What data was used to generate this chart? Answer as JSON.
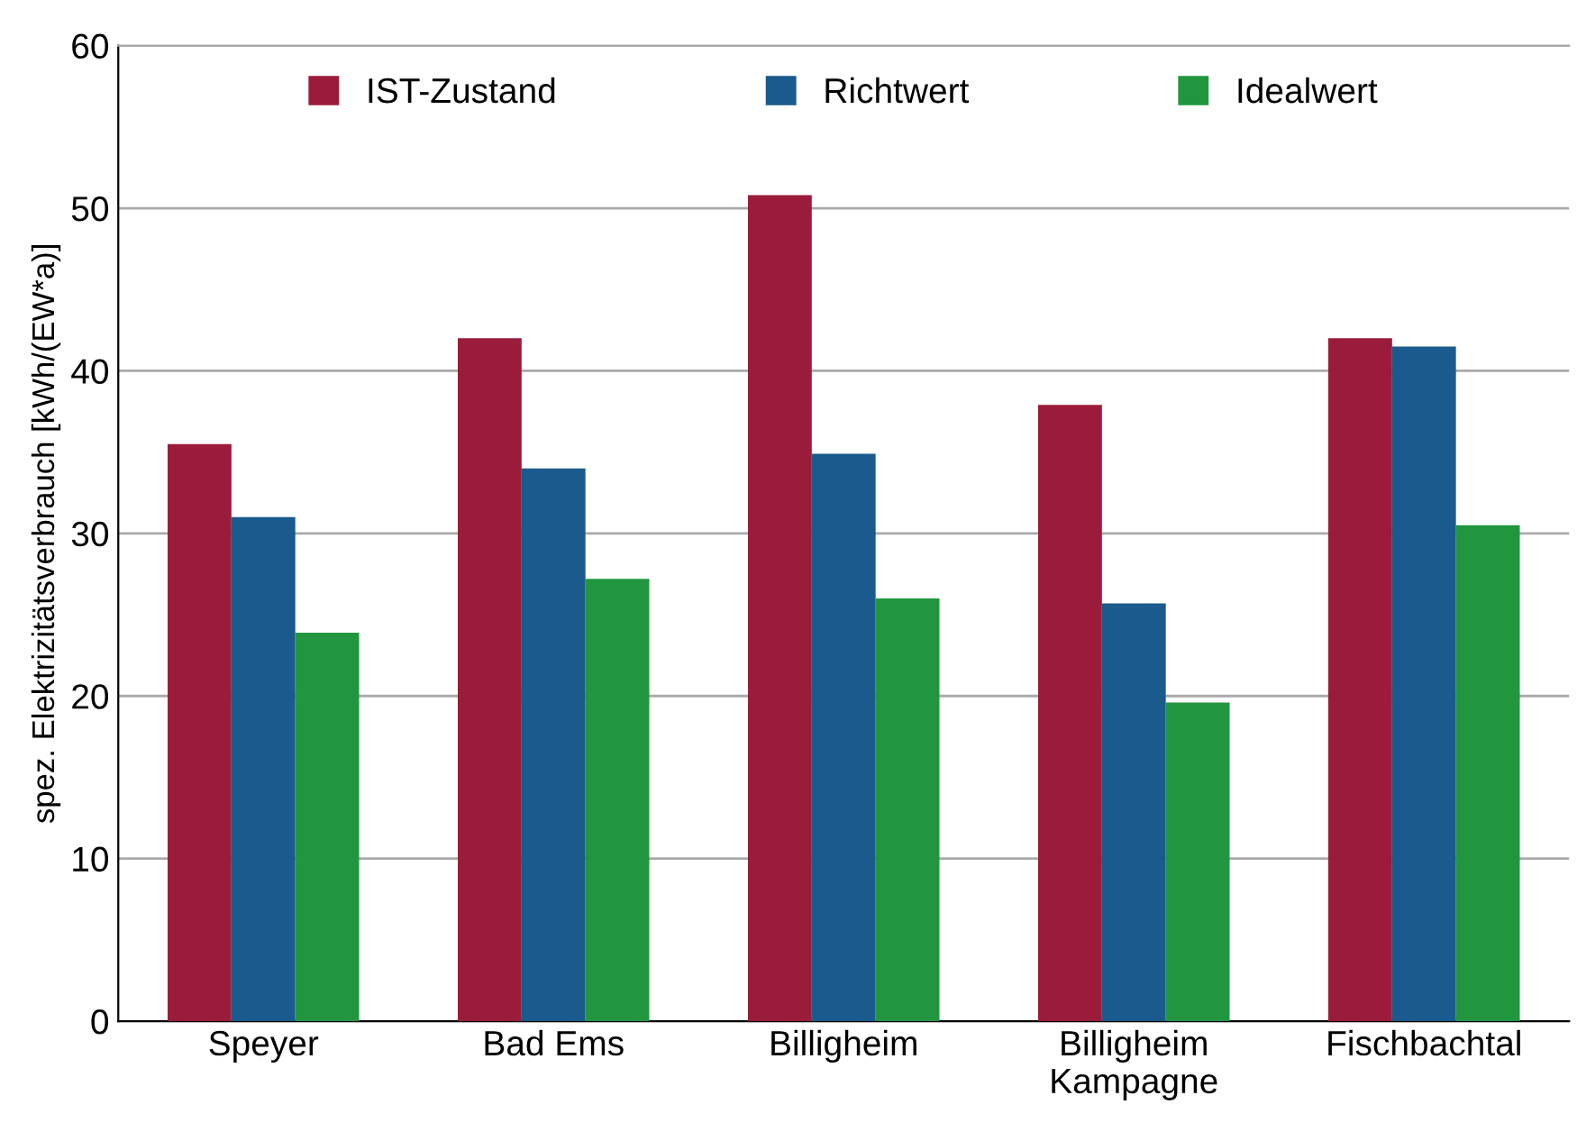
{
  "chart_data": {
    "type": "bar",
    "ylabel": "spez. Elektrizitätsverbrauch [kWh/(EW*a)]",
    "categories": [
      "Speyer",
      "Bad Ems",
      "Billigheim",
      "Billigheim\nKampagne",
      "Fischbachtal"
    ],
    "series": [
      {
        "name": "IST-Zustand",
        "color": "#9b1c3a",
        "values": [
          35.5,
          42.0,
          50.8,
          37.9,
          42.0
        ]
      },
      {
        "name": "Richtwert",
        "color": "#1a5a8c",
        "values": [
          31.0,
          34.0,
          34.9,
          25.7,
          41.5
        ]
      },
      {
        "name": "Idealwert",
        "color": "#22963f",
        "values": [
          23.9,
          27.2,
          26.0,
          19.6,
          30.5
        ]
      }
    ],
    "ylim": [
      0,
      60
    ],
    "yticks": [
      0,
      10,
      20,
      30,
      40,
      50,
      60
    ],
    "grid": "y",
    "legend": "top"
  }
}
